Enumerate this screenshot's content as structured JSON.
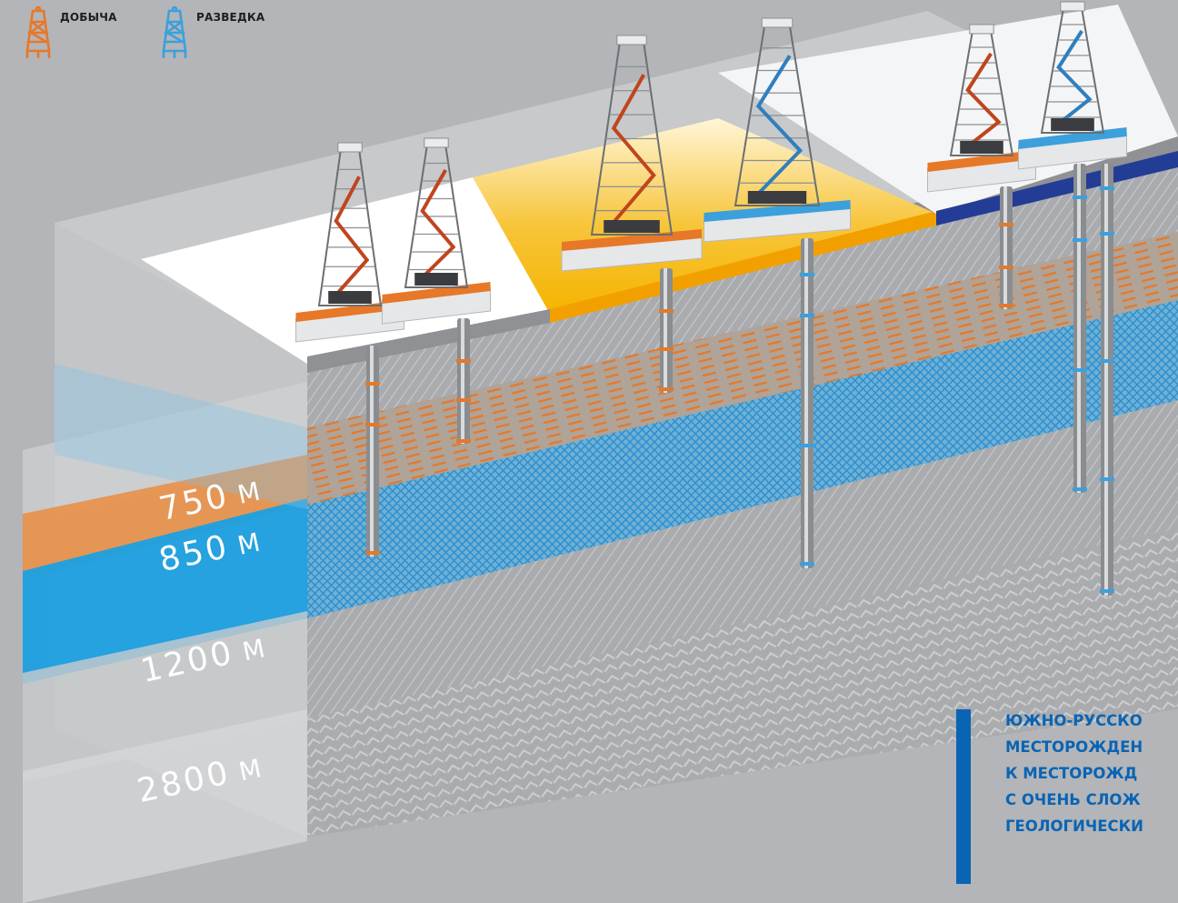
{
  "legend": {
    "production": {
      "label": "ДОБЫЧА",
      "icon": "production-rig-icon",
      "color": "#e67828"
    },
    "exploration": {
      "label": "РАЗВЕДКА",
      "icon": "exploration-rig-icon",
      "color": "#3ca0dc"
    }
  },
  "depths": [
    {
      "value": "750",
      "unit": "М"
    },
    {
      "value": "850",
      "unit": "М"
    },
    {
      "value": "1200",
      "unit": "М"
    },
    {
      "value": "2800",
      "unit": "М"
    }
  ],
  "caption": {
    "lines": [
      "ЮЖНО-РУССКО",
      "МЕСТОРОЖДЕН",
      "К МЕСТОРОЖД",
      "С ОЧЕНЬ СЛОЖ",
      "ГЕОЛОГИЧЕСКИ"
    ]
  },
  "colors": {
    "production": "#e67828",
    "exploration": "#3ca0dc",
    "caption": "#0a64b4",
    "pad_yellow": "#f5b400",
    "pad_navy": "#233c96"
  }
}
